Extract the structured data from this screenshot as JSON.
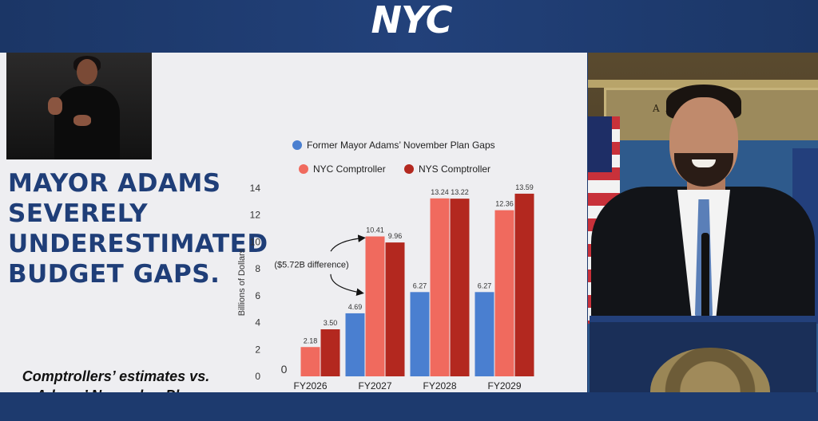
{
  "header": {
    "logo_text": "NYC"
  },
  "slide": {
    "headline_lines": [
      "MAYOR ADAMS",
      "SEVERELY",
      "UNDERESTIMATED",
      "BUDGET GAPS."
    ],
    "subhead_lines": [
      "Comptrollers’ estimates vs.",
      "Adams’ November Plan"
    ]
  },
  "speaker_panel": {
    "plaque_text": "A    A    MILTON"
  },
  "colors": {
    "adams": "#4a7fd0",
    "nyc": "#f06a5e",
    "nys": "#b3281f",
    "headline": "#1f3e78",
    "frame": "#1d3a6e"
  },
  "chart_data": {
    "type": "bar",
    "title": "",
    "xlabel": "",
    "ylabel": "Billions of Dollars",
    "ylim": [
      0,
      14
    ],
    "yticks": [
      0,
      2,
      4,
      6,
      8,
      10,
      12,
      14
    ],
    "grid": false,
    "legend_position": "top",
    "categories": [
      "FY2026",
      "FY2027",
      "FY2028",
      "FY2029"
    ],
    "series": [
      {
        "name": "Former Mayor Adams’ November Plan Gaps",
        "color": "#4a7fd0",
        "values": [
          0,
          4.69,
          6.27,
          6.27
        ],
        "labels": [
          "0",
          "4.69",
          "6.27",
          "6.27"
        ]
      },
      {
        "name": "NYC Comptroller",
        "color": "#f06a5e",
        "values": [
          2.18,
          10.41,
          13.24,
          12.36
        ],
        "labels": [
          "2.18",
          "10.41",
          "13.24",
          "12.36"
        ]
      },
      {
        "name": "NYS Comptroller",
        "color": "#b3281f",
        "values": [
          3.5,
          9.96,
          13.22,
          13.59
        ],
        "labels": [
          "3.50",
          "9.96",
          "13.22",
          "13.59"
        ]
      }
    ],
    "annotation": {
      "text": "($5.72B difference)",
      "category": "FY2027"
    }
  }
}
